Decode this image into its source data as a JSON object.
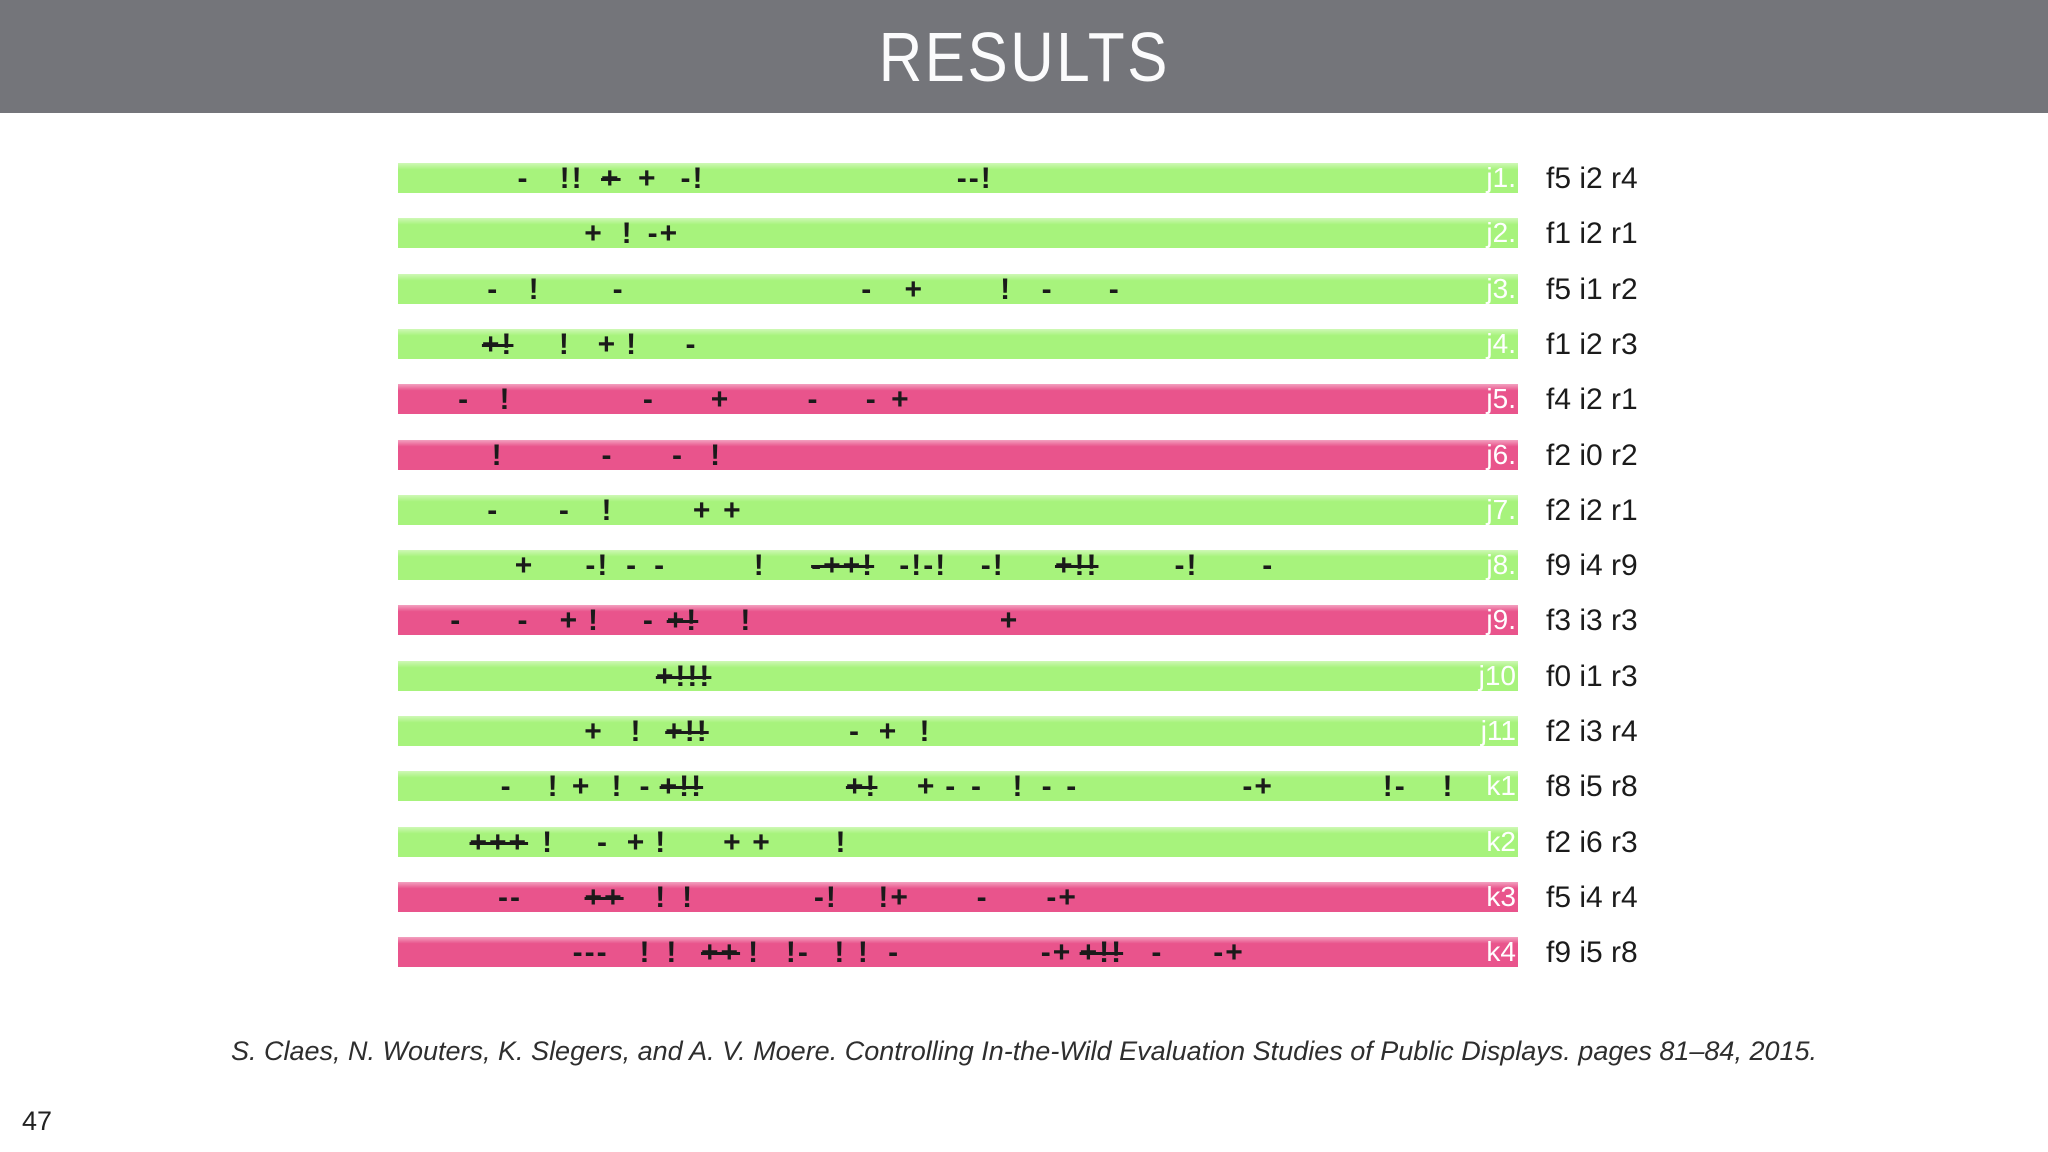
{
  "header": {
    "title": "RESULTS"
  },
  "colors": {
    "header_bg": "#74757a",
    "title_text": "#fbfbfc",
    "green": "#a7f37c",
    "pink": "#e9548c",
    "mark": "#1a1a1a",
    "bar_id_text": "#ffffff",
    "meta_text": "#1b1b1b"
  },
  "chart_data": {
    "type": "annotated_bars",
    "title": "RESULTS",
    "note": "15 horizontal session bars annotated with +, - and ! event marks; x position is percent of bar width",
    "bar_colors": {
      "green": "#a7f37c",
      "pink": "#e9548c"
    },
    "rows": [
      {
        "id": "j1.",
        "color": "green",
        "meta": "f5 i2 r4",
        "marks": [
          {
            "x": 11.2,
            "t": "-"
          },
          {
            "x": 15.5,
            "t": "!!"
          },
          {
            "x": 19.0,
            "t": "+",
            "s": true
          },
          {
            "x": 22.3,
            "t": "+"
          },
          {
            "x": 26.3,
            "t": "-!"
          },
          {
            "x": 51.5,
            "t": "--!"
          }
        ]
      },
      {
        "id": "j2.",
        "color": "green",
        "meta": "f1 i2 r1",
        "marks": [
          {
            "x": 17.5,
            "t": "+"
          },
          {
            "x": 20.5,
            "t": "!"
          },
          {
            "x": 23.7,
            "t": "-+"
          }
        ]
      },
      {
        "id": "j3.",
        "color": "green",
        "meta": "f5 i1 r2",
        "marks": [
          {
            "x": 8.5,
            "t": "-"
          },
          {
            "x": 12.2,
            "t": "!"
          },
          {
            "x": 19.7,
            "t": "-"
          },
          {
            "x": 41.9,
            "t": "-"
          },
          {
            "x": 46.1,
            "t": "+"
          },
          {
            "x": 54.3,
            "t": "!"
          },
          {
            "x": 58.0,
            "t": "-"
          },
          {
            "x": 64.0,
            "t": "-"
          }
        ]
      },
      {
        "id": "j4.",
        "color": "green",
        "meta": "f1 i2 r3",
        "marks": [
          {
            "x": 8.9,
            "t": "+!",
            "s": true
          },
          {
            "x": 14.9,
            "t": "!"
          },
          {
            "x": 18.7,
            "t": "+"
          },
          {
            "x": 20.9,
            "t": "!"
          },
          {
            "x": 26.2,
            "t": "-"
          }
        ]
      },
      {
        "id": "j5.",
        "color": "pink",
        "meta": "f4 i2 r1",
        "marks": [
          {
            "x": 5.9,
            "t": "-"
          },
          {
            "x": 9.6,
            "t": "!"
          },
          {
            "x": 22.4,
            "t": "-"
          },
          {
            "x": 28.8,
            "t": "+"
          },
          {
            "x": 37.1,
            "t": "-"
          },
          {
            "x": 42.3,
            "t": "-"
          },
          {
            "x": 44.9,
            "t": "+"
          }
        ]
      },
      {
        "id": "j6.",
        "color": "pink",
        "meta": "f2 i0 r2",
        "marks": [
          {
            "x": 8.9,
            "t": "!"
          },
          {
            "x": 18.7,
            "t": "-"
          },
          {
            "x": 25.0,
            "t": "-"
          },
          {
            "x": 28.4,
            "t": "!"
          }
        ]
      },
      {
        "id": "j7.",
        "color": "green",
        "meta": "f2 i2 r1",
        "marks": [
          {
            "x": 8.5,
            "t": "-"
          },
          {
            "x": 14.9,
            "t": "-"
          },
          {
            "x": 18.7,
            "t": "!"
          },
          {
            "x": 27.2,
            "t": "+"
          },
          {
            "x": 29.9,
            "t": "+"
          }
        ]
      },
      {
        "id": "j8.",
        "color": "green",
        "meta": "f9 i4 r9",
        "marks": [
          {
            "x": 11.3,
            "t": "+"
          },
          {
            "x": 17.8,
            "t": "-!"
          },
          {
            "x": 20.9,
            "t": "-"
          },
          {
            "x": 23.4,
            "t": "-"
          },
          {
            "x": 32.3,
            "t": "!"
          },
          {
            "x": 39.7,
            "t": "-++!",
            "s": true
          },
          {
            "x": 46.9,
            "t": "-!-!"
          },
          {
            "x": 53.1,
            "t": "-!"
          },
          {
            "x": 60.6,
            "t": "+!!",
            "s": true
          },
          {
            "x": 70.4,
            "t": "-!"
          },
          {
            "x": 77.7,
            "t": "-"
          }
        ]
      },
      {
        "id": "j9.",
        "color": "pink",
        "meta": "f3 i3 r3",
        "marks": [
          {
            "x": 5.2,
            "t": "-"
          },
          {
            "x": 11.2,
            "t": "-"
          },
          {
            "x": 15.3,
            "t": "+"
          },
          {
            "x": 17.5,
            "t": "!"
          },
          {
            "x": 22.4,
            "t": "-"
          },
          {
            "x": 25.4,
            "t": "+!",
            "s": true
          },
          {
            "x": 31.1,
            "t": "!"
          },
          {
            "x": 54.6,
            "t": "+"
          }
        ]
      },
      {
        "id": "j10",
        "color": "green",
        "meta": "f0 i1 r3",
        "marks": [
          {
            "x": 25.5,
            "t": "+!!!",
            "s": true
          }
        ]
      },
      {
        "id": "j11",
        "color": "green",
        "meta": "f2 i3 r4",
        "marks": [
          {
            "x": 17.5,
            "t": "+"
          },
          {
            "x": 21.3,
            "t": "!"
          },
          {
            "x": 25.8,
            "t": "+!!",
            "s": true
          },
          {
            "x": 40.8,
            "t": "-"
          },
          {
            "x": 43.8,
            "t": "+"
          },
          {
            "x": 47.1,
            "t": "!"
          }
        ]
      },
      {
        "id": "k1",
        "color": "green",
        "meta": "f8 i5 r8",
        "marks": [
          {
            "x": 9.7,
            "t": "-"
          },
          {
            "x": 13.9,
            "t": "!"
          },
          {
            "x": 16.4,
            "t": "+"
          },
          {
            "x": 19.6,
            "t": "!"
          },
          {
            "x": 22.1,
            "t": "-"
          },
          {
            "x": 25.3,
            "t": "+!!",
            "s": true
          },
          {
            "x": 41.4,
            "t": "+!",
            "s": true
          },
          {
            "x": 47.2,
            "t": "+"
          },
          {
            "x": 49.4,
            "t": "-"
          },
          {
            "x": 51.7,
            "t": "-"
          },
          {
            "x": 55.4,
            "t": "!"
          },
          {
            "x": 58.0,
            "t": "-"
          },
          {
            "x": 60.2,
            "t": "-"
          },
          {
            "x": 76.8,
            "t": "-+"
          },
          {
            "x": 89.0,
            "t": "!-"
          },
          {
            "x": 93.8,
            "t": "!"
          }
        ]
      },
      {
        "id": "k2",
        "color": "green",
        "meta": "f2 i6 r3",
        "marks": [
          {
            "x": 9.0,
            "t": "+++",
            "s": true
          },
          {
            "x": 13.4,
            "t": "!"
          },
          {
            "x": 18.3,
            "t": "-"
          },
          {
            "x": 21.3,
            "t": "+"
          },
          {
            "x": 23.5,
            "t": "!"
          },
          {
            "x": 29.9,
            "t": "+"
          },
          {
            "x": 32.5,
            "t": "+"
          },
          {
            "x": 39.6,
            "t": "!"
          }
        ]
      },
      {
        "id": "k3",
        "color": "pink",
        "meta": "f5 i4 r4",
        "marks": [
          {
            "x": 10.0,
            "t": "--"
          },
          {
            "x": 18.4,
            "t": "++",
            "s": true
          },
          {
            "x": 23.5,
            "t": "!"
          },
          {
            "x": 25.9,
            "t": "!"
          },
          {
            "x": 38.2,
            "t": "-!"
          },
          {
            "x": 44.3,
            "t": "!+"
          },
          {
            "x": 52.2,
            "t": "-"
          },
          {
            "x": 59.3,
            "t": "-+"
          }
        ]
      },
      {
        "id": "k4",
        "color": "pink",
        "meta": "f9 i5 r8",
        "marks": [
          {
            "x": 17.2,
            "t": "---"
          },
          {
            "x": 22.1,
            "t": "!"
          },
          {
            "x": 24.5,
            "t": "!"
          },
          {
            "x": 28.8,
            "t": "++",
            "s": true
          },
          {
            "x": 31.8,
            "t": "!"
          },
          {
            "x": 35.7,
            "t": "!-"
          },
          {
            "x": 39.5,
            "t": "!"
          },
          {
            "x": 41.6,
            "t": "!"
          },
          {
            "x": 44.3,
            "t": "-"
          },
          {
            "x": 58.8,
            "t": "-+"
          },
          {
            "x": 62.8,
            "t": "+!!",
            "s": true
          },
          {
            "x": 67.8,
            "t": "-"
          },
          {
            "x": 74.2,
            "t": "-+"
          }
        ]
      }
    ]
  },
  "footer": {
    "citation": "S. Claes, N. Wouters, K. Slegers, and A. V. Moere. Controlling In-the-Wild Evaluation Studies of Public Displays. pages 81–84, 2015.",
    "page_number": "47"
  }
}
